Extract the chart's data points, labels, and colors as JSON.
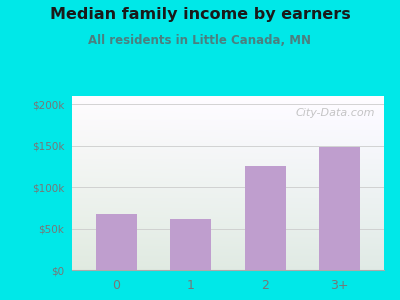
{
  "title": "Median family income by earners",
  "subtitle": "All residents in Little Canada, MN",
  "categories": [
    "0",
    "1",
    "2",
    "3+"
  ],
  "values": [
    68000,
    62000,
    125000,
    148000
  ],
  "bar_color": "#bf9ece",
  "title_color": "#1a1a1a",
  "subtitle_color": "#4a8080",
  "bg_color": "#00e8e8",
  "plot_bg_topleft": "#d8eeda",
  "plot_bg_topright": "#eaf5f5",
  "plot_bg_bottom": "#f0faf0",
  "yticks": [
    0,
    50000,
    100000,
    150000,
    200000
  ],
  "ytick_labels": [
    "$0",
    "$50k",
    "$100k",
    "$150k",
    "$200k"
  ],
  "ylim": [
    0,
    210000
  ],
  "watermark": "City-Data.com",
  "watermark_color": "#bbbbbb",
  "grid_color": "#cccccc",
  "tick_color": "#777777"
}
